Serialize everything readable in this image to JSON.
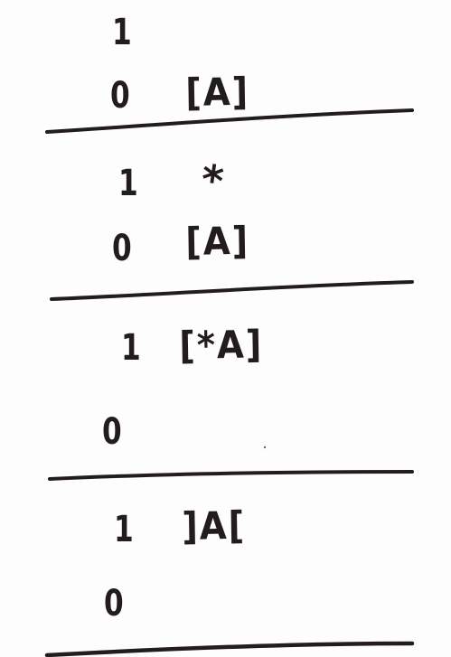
{
  "colors": {
    "ink": "#231c1e",
    "paper": "#fdfdfd"
  },
  "panels": [
    {
      "row1_digit": "1",
      "row1_symbol": "",
      "row0_digit": "0",
      "row0_symbol": "[A]"
    },
    {
      "row1_digit": "1",
      "row1_symbol": "*",
      "row0_digit": "0",
      "row0_symbol": "[A]"
    },
    {
      "row1_digit": "1",
      "row1_symbol": "[*A]",
      "row0_digit": "0",
      "row0_symbol": ""
    },
    {
      "row1_digit": "1",
      "row1_symbol": "]A[",
      "row0_digit": "0",
      "row0_symbol": ""
    }
  ]
}
